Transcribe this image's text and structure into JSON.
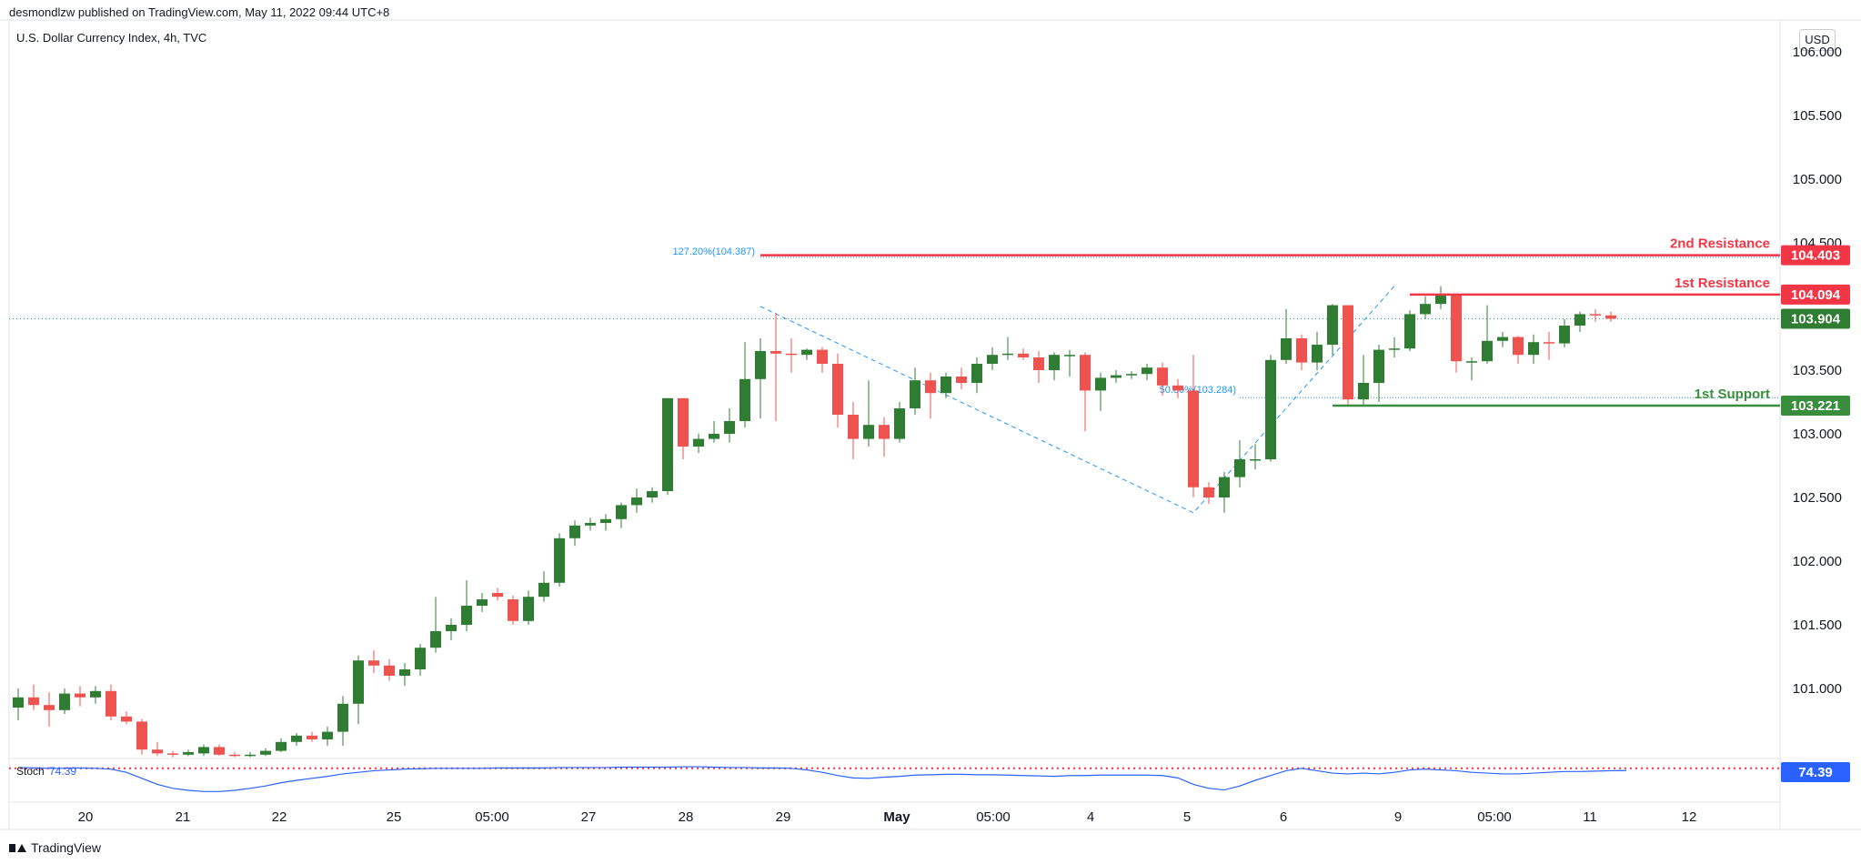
{
  "header": {
    "published_by": "desmondlzw published on TradingView.com, May 11, 2022 09:44 UTC+8"
  },
  "symbol": {
    "title": "U.S. Dollar Currency Index, 4h, TVC"
  },
  "price_axis": {
    "currency_button": "USD",
    "ticks": [
      "106.000",
      "105.500",
      "105.000",
      "104.500",
      "103.500",
      "103.000",
      "102.500",
      "102.000",
      "101.500",
      "101.000"
    ]
  },
  "time_axis": {
    "ticks": [
      "20",
      "21",
      "22",
      "25",
      "05:00",
      "27",
      "28",
      "29",
      "May",
      "05:00",
      "4",
      "5",
      "6",
      "9",
      "05:00",
      "11",
      "12"
    ]
  },
  "colors": {
    "up": "#2e7d32",
    "down": "#ef5350",
    "resistance": "#f23645",
    "support": "#388e3c",
    "stoch": "#2962ff",
    "fib": "#2196f3"
  },
  "chart_data": {
    "type": "candlestick",
    "instrument": "U.S. Dollar Currency Index",
    "interval": "4h",
    "y_range": [
      100.45,
      106.25
    ],
    "candles": [
      {
        "o": 100.85,
        "h": 101.0,
        "l": 100.75,
        "c": 100.93
      },
      {
        "o": 100.93,
        "h": 101.03,
        "l": 100.83,
        "c": 100.87
      },
      {
        "o": 100.87,
        "h": 100.97,
        "l": 100.7,
        "c": 100.83
      },
      {
        "o": 100.83,
        "h": 101.0,
        "l": 100.8,
        "c": 100.96
      },
      {
        "o": 100.96,
        "h": 101.02,
        "l": 100.86,
        "c": 100.93
      },
      {
        "o": 100.93,
        "h": 101.02,
        "l": 100.88,
        "c": 100.98
      },
      {
        "o": 100.98,
        "h": 101.03,
        "l": 100.75,
        "c": 100.78
      },
      {
        "o": 100.78,
        "h": 100.82,
        "l": 100.72,
        "c": 100.74
      },
      {
        "o": 100.74,
        "h": 100.76,
        "l": 100.48,
        "c": 100.52
      },
      {
        "o": 100.52,
        "h": 100.58,
        "l": 100.47,
        "c": 100.49
      },
      {
        "o": 100.49,
        "h": 100.51,
        "l": 100.46,
        "c": 100.48
      },
      {
        "o": 100.48,
        "h": 100.52,
        "l": 100.47,
        "c": 100.5
      },
      {
        "o": 100.49,
        "h": 100.56,
        "l": 100.47,
        "c": 100.54
      },
      {
        "o": 100.54,
        "h": 100.56,
        "l": 100.47,
        "c": 100.48
      },
      {
        "o": 100.48,
        "h": 100.5,
        "l": 100.46,
        "c": 100.47
      },
      {
        "o": 100.47,
        "h": 100.5,
        "l": 100.46,
        "c": 100.48
      },
      {
        "o": 100.48,
        "h": 100.53,
        "l": 100.47,
        "c": 100.51
      },
      {
        "o": 100.51,
        "h": 100.61,
        "l": 100.5,
        "c": 100.58
      },
      {
        "o": 100.58,
        "h": 100.65,
        "l": 100.55,
        "c": 100.63
      },
      {
        "o": 100.63,
        "h": 100.66,
        "l": 100.58,
        "c": 100.6
      },
      {
        "o": 100.6,
        "h": 100.7,
        "l": 100.55,
        "c": 100.66
      },
      {
        "o": 100.66,
        "h": 100.94,
        "l": 100.55,
        "c": 100.88
      },
      {
        "o": 100.88,
        "h": 101.26,
        "l": 100.72,
        "c": 101.22
      },
      {
        "o": 101.22,
        "h": 101.3,
        "l": 101.12,
        "c": 101.18
      },
      {
        "o": 101.18,
        "h": 101.23,
        "l": 101.06,
        "c": 101.1
      },
      {
        "o": 101.1,
        "h": 101.2,
        "l": 101.02,
        "c": 101.15
      },
      {
        "o": 101.15,
        "h": 101.35,
        "l": 101.1,
        "c": 101.32
      },
      {
        "o": 101.32,
        "h": 101.72,
        "l": 101.28,
        "c": 101.45
      },
      {
        "o": 101.45,
        "h": 101.55,
        "l": 101.38,
        "c": 101.5
      },
      {
        "o": 101.5,
        "h": 101.85,
        "l": 101.45,
        "c": 101.65
      },
      {
        "o": 101.65,
        "h": 101.75,
        "l": 101.6,
        "c": 101.7
      },
      {
        "o": 101.75,
        "h": 101.79,
        "l": 101.69,
        "c": 101.72
      },
      {
        "o": 101.7,
        "h": 101.73,
        "l": 101.5,
        "c": 101.53
      },
      {
        "o": 101.53,
        "h": 101.77,
        "l": 101.5,
        "c": 101.72
      },
      {
        "o": 101.72,
        "h": 101.92,
        "l": 101.68,
        "c": 101.83
      },
      {
        "o": 101.83,
        "h": 102.22,
        "l": 101.8,
        "c": 102.18
      },
      {
        "o": 102.18,
        "h": 102.32,
        "l": 102.12,
        "c": 102.28
      },
      {
        "o": 102.28,
        "h": 102.34,
        "l": 102.24,
        "c": 102.3
      },
      {
        "o": 102.3,
        "h": 102.37,
        "l": 102.24,
        "c": 102.33
      },
      {
        "o": 102.33,
        "h": 102.46,
        "l": 102.26,
        "c": 102.44
      },
      {
        "o": 102.44,
        "h": 102.57,
        "l": 102.38,
        "c": 102.5
      },
      {
        "o": 102.5,
        "h": 102.58,
        "l": 102.46,
        "c": 102.55
      },
      {
        "o": 102.55,
        "h": 103.28,
        "l": 102.52,
        "c": 103.28
      },
      {
        "o": 103.28,
        "h": 103.28,
        "l": 102.8,
        "c": 102.9
      },
      {
        "o": 102.9,
        "h": 103.0,
        "l": 102.85,
        "c": 102.96
      },
      {
        "o": 102.96,
        "h": 103.1,
        "l": 102.93,
        "c": 103.0
      },
      {
        "o": 103.0,
        "h": 103.2,
        "l": 102.93,
        "c": 103.1
      },
      {
        "o": 103.1,
        "h": 103.72,
        "l": 103.05,
        "c": 103.43
      },
      {
        "o": 103.43,
        "h": 103.75,
        "l": 103.12,
        "c": 103.65
      },
      {
        "o": 103.65,
        "h": 103.95,
        "l": 103.1,
        "c": 103.63
      },
      {
        "o": 103.63,
        "h": 103.75,
        "l": 103.48,
        "c": 103.62
      },
      {
        "o": 103.62,
        "h": 103.67,
        "l": 103.58,
        "c": 103.66
      },
      {
        "o": 103.66,
        "h": 103.68,
        "l": 103.48,
        "c": 103.55
      },
      {
        "o": 103.55,
        "h": 103.63,
        "l": 103.05,
        "c": 103.15
      },
      {
        "o": 103.15,
        "h": 103.25,
        "l": 102.8,
        "c": 102.96
      },
      {
        "o": 102.96,
        "h": 103.42,
        "l": 102.9,
        "c": 103.07
      },
      {
        "o": 103.07,
        "h": 103.13,
        "l": 102.82,
        "c": 102.96
      },
      {
        "o": 102.96,
        "h": 103.25,
        "l": 102.93,
        "c": 103.2
      },
      {
        "o": 103.2,
        "h": 103.52,
        "l": 103.15,
        "c": 103.42
      },
      {
        "o": 103.42,
        "h": 103.48,
        "l": 103.12,
        "c": 103.32
      },
      {
        "o": 103.32,
        "h": 103.48,
        "l": 103.28,
        "c": 103.45
      },
      {
        "o": 103.45,
        "h": 103.52,
        "l": 103.35,
        "c": 103.4
      },
      {
        "o": 103.4,
        "h": 103.6,
        "l": 103.32,
        "c": 103.55
      },
      {
        "o": 103.55,
        "h": 103.68,
        "l": 103.5,
        "c": 103.62
      },
      {
        "o": 103.62,
        "h": 103.76,
        "l": 103.58,
        "c": 103.63
      },
      {
        "o": 103.63,
        "h": 103.67,
        "l": 103.58,
        "c": 103.6
      },
      {
        "o": 103.6,
        "h": 103.65,
        "l": 103.4,
        "c": 103.5
      },
      {
        "o": 103.5,
        "h": 103.64,
        "l": 103.42,
        "c": 103.62
      },
      {
        "o": 103.62,
        "h": 103.66,
        "l": 103.45,
        "c": 103.62
      },
      {
        "o": 103.62,
        "h": 103.64,
        "l": 103.02,
        "c": 103.34
      },
      {
        "o": 103.34,
        "h": 103.48,
        "l": 103.18,
        "c": 103.44
      },
      {
        "o": 103.44,
        "h": 103.5,
        "l": 103.4,
        "c": 103.46
      },
      {
        "o": 103.46,
        "h": 103.49,
        "l": 103.43,
        "c": 103.47
      },
      {
        "o": 103.47,
        "h": 103.55,
        "l": 103.42,
        "c": 103.52
      },
      {
        "o": 103.52,
        "h": 103.56,
        "l": 103.3,
        "c": 103.38
      },
      {
        "o": 103.38,
        "h": 103.43,
        "l": 103.28,
        "c": 103.34
      },
      {
        "o": 103.34,
        "h": 103.62,
        "l": 102.5,
        "c": 102.58
      },
      {
        "o": 102.58,
        "h": 102.62,
        "l": 102.45,
        "c": 102.5
      },
      {
        "o": 102.5,
        "h": 102.7,
        "l": 102.38,
        "c": 102.66
      },
      {
        "o": 102.66,
        "h": 102.95,
        "l": 102.58,
        "c": 102.8
      },
      {
        "o": 102.8,
        "h": 102.92,
        "l": 102.72,
        "c": 102.8
      },
      {
        "o": 102.8,
        "h": 103.62,
        "l": 102.78,
        "c": 103.58
      },
      {
        "o": 103.58,
        "h": 103.98,
        "l": 103.55,
        "c": 103.75
      },
      {
        "o": 103.75,
        "h": 103.78,
        "l": 103.5,
        "c": 103.56
      },
      {
        "o": 103.56,
        "h": 103.8,
        "l": 103.5,
        "c": 103.7
      },
      {
        "o": 103.7,
        "h": 104.02,
        "l": 103.62,
        "c": 104.01
      },
      {
        "o": 104.01,
        "h": 104.01,
        "l": 103.22,
        "c": 103.27
      },
      {
        "o": 103.27,
        "h": 103.62,
        "l": 103.22,
        "c": 103.4
      },
      {
        "o": 103.4,
        "h": 103.7,
        "l": 103.25,
        "c": 103.66
      },
      {
        "o": 103.66,
        "h": 103.76,
        "l": 103.6,
        "c": 103.67
      },
      {
        "o": 103.67,
        "h": 103.97,
        "l": 103.65,
        "c": 103.94
      },
      {
        "o": 103.94,
        "h": 104.08,
        "l": 103.9,
        "c": 104.02
      },
      {
        "o": 104.02,
        "h": 104.16,
        "l": 103.98,
        "c": 104.1
      },
      {
        "o": 104.1,
        "h": 104.1,
        "l": 103.48,
        "c": 103.57
      },
      {
        "o": 103.57,
        "h": 103.6,
        "l": 103.42,
        "c": 103.57
      },
      {
        "o": 103.57,
        "h": 104.01,
        "l": 103.55,
        "c": 103.73
      },
      {
        "o": 103.73,
        "h": 103.8,
        "l": 103.68,
        "c": 103.76
      },
      {
        "o": 103.76,
        "h": 103.77,
        "l": 103.55,
        "c": 103.62
      },
      {
        "o": 103.62,
        "h": 103.78,
        "l": 103.55,
        "c": 103.72
      },
      {
        "o": 103.72,
        "h": 103.8,
        "l": 103.58,
        "c": 103.71
      },
      {
        "o": 103.71,
        "h": 103.9,
        "l": 103.68,
        "c": 103.85
      },
      {
        "o": 103.85,
        "h": 103.96,
        "l": 103.8,
        "c": 103.94
      },
      {
        "o": 103.94,
        "h": 103.98,
        "l": 103.88,
        "c": 103.93
      },
      {
        "o": 103.93,
        "h": 103.96,
        "l": 103.88,
        "c": 103.904
      }
    ],
    "levels": [
      {
        "name": "2nd Resistance",
        "value": 104.403,
        "label": "104.403",
        "color": "#f23645"
      },
      {
        "name": "1st Resistance",
        "value": 104.094,
        "label": "104.094",
        "color": "#f23645"
      },
      {
        "name": "1st Support",
        "value": 103.221,
        "label": "103.221",
        "color": "#388e3c"
      }
    ],
    "last_price": {
      "value": 103.904,
      "label": "103.904"
    },
    "fib_annotations": [
      {
        "label": "127.20%(104.387)",
        "value": 104.387
      },
      {
        "label": "50.00%(103.284)",
        "value": 103.284
      }
    ],
    "stochastic": {
      "label": "Stoch",
      "value_label": "74.39",
      "value": 74.39,
      "values": [
        82,
        81,
        80,
        80,
        81,
        80,
        78,
        70,
        55,
        40,
        30,
        25,
        22,
        22,
        25,
        30,
        36,
        44,
        50,
        55,
        60,
        66,
        70,
        74,
        76,
        78,
        79,
        80,
        80,
        80,
        80,
        81,
        81,
        81,
        81,
        82,
        82,
        82,
        82,
        83,
        83,
        83,
        83,
        84,
        84,
        83,
        82,
        82,
        81,
        81,
        80,
        76,
        70,
        62,
        56,
        55,
        58,
        60,
        63,
        64,
        65,
        65,
        64,
        64,
        63,
        62,
        61,
        60,
        62,
        62,
        63,
        63,
        63,
        63,
        62,
        56,
        40,
        30,
        26,
        36,
        50,
        62,
        74,
        80,
        74,
        68,
        66,
        68,
        66,
        70,
        76,
        78,
        76,
        74,
        70,
        68,
        66,
        66,
        68,
        70,
        72,
        72,
        73,
        74,
        74.39
      ],
      "overbought": 80
    }
  }
}
